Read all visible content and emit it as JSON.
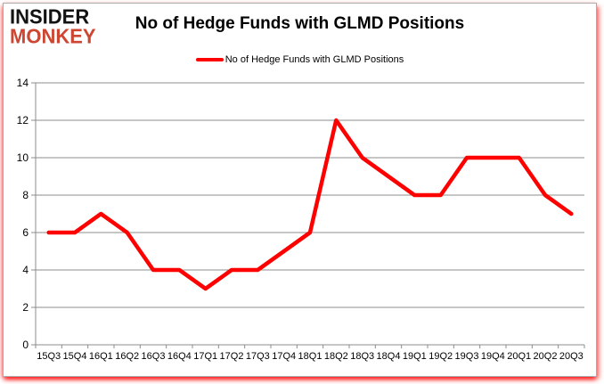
{
  "logo": {
    "line1": "INSIDER",
    "line2": "MONKEY",
    "line1_color": "#131313",
    "line2_color": "#cc4631"
  },
  "title": "No of Hedge Funds with GLMD Positions",
  "legend": {
    "label": "No of Hedge Funds with GLMD Positions",
    "swatch_color": "#ff0000"
  },
  "chart_data": {
    "type": "line",
    "title": "No of Hedge Funds with GLMD Positions",
    "categories": [
      "15Q3",
      "15Q4",
      "16Q1",
      "16Q2",
      "16Q3",
      "16Q4",
      "17Q1",
      "17Q2",
      "17Q3",
      "17Q4",
      "18Q1",
      "18Q2",
      "18Q3",
      "18Q4",
      "19Q1",
      "19Q2",
      "19Q3",
      "19Q4",
      "20Q1",
      "20Q2",
      "20Q3"
    ],
    "series": [
      {
        "name": "No of Hedge Funds with GLMD Positions",
        "values": [
          6,
          6,
          7,
          6,
          4,
          4,
          3,
          4,
          4,
          5,
          6,
          12,
          10,
          9,
          8,
          8,
          10,
          10,
          10,
          8,
          7
        ],
        "color": "#ff0000"
      }
    ],
    "xlabel": "",
    "ylabel": "",
    "ylim": [
      0,
      14
    ],
    "yticks": [
      0,
      2,
      4,
      6,
      8,
      10,
      12,
      14
    ],
    "grid": true,
    "legend_position": "top",
    "gridline_color": "#8c8c8c",
    "axis_color": "#8c8c8c"
  }
}
